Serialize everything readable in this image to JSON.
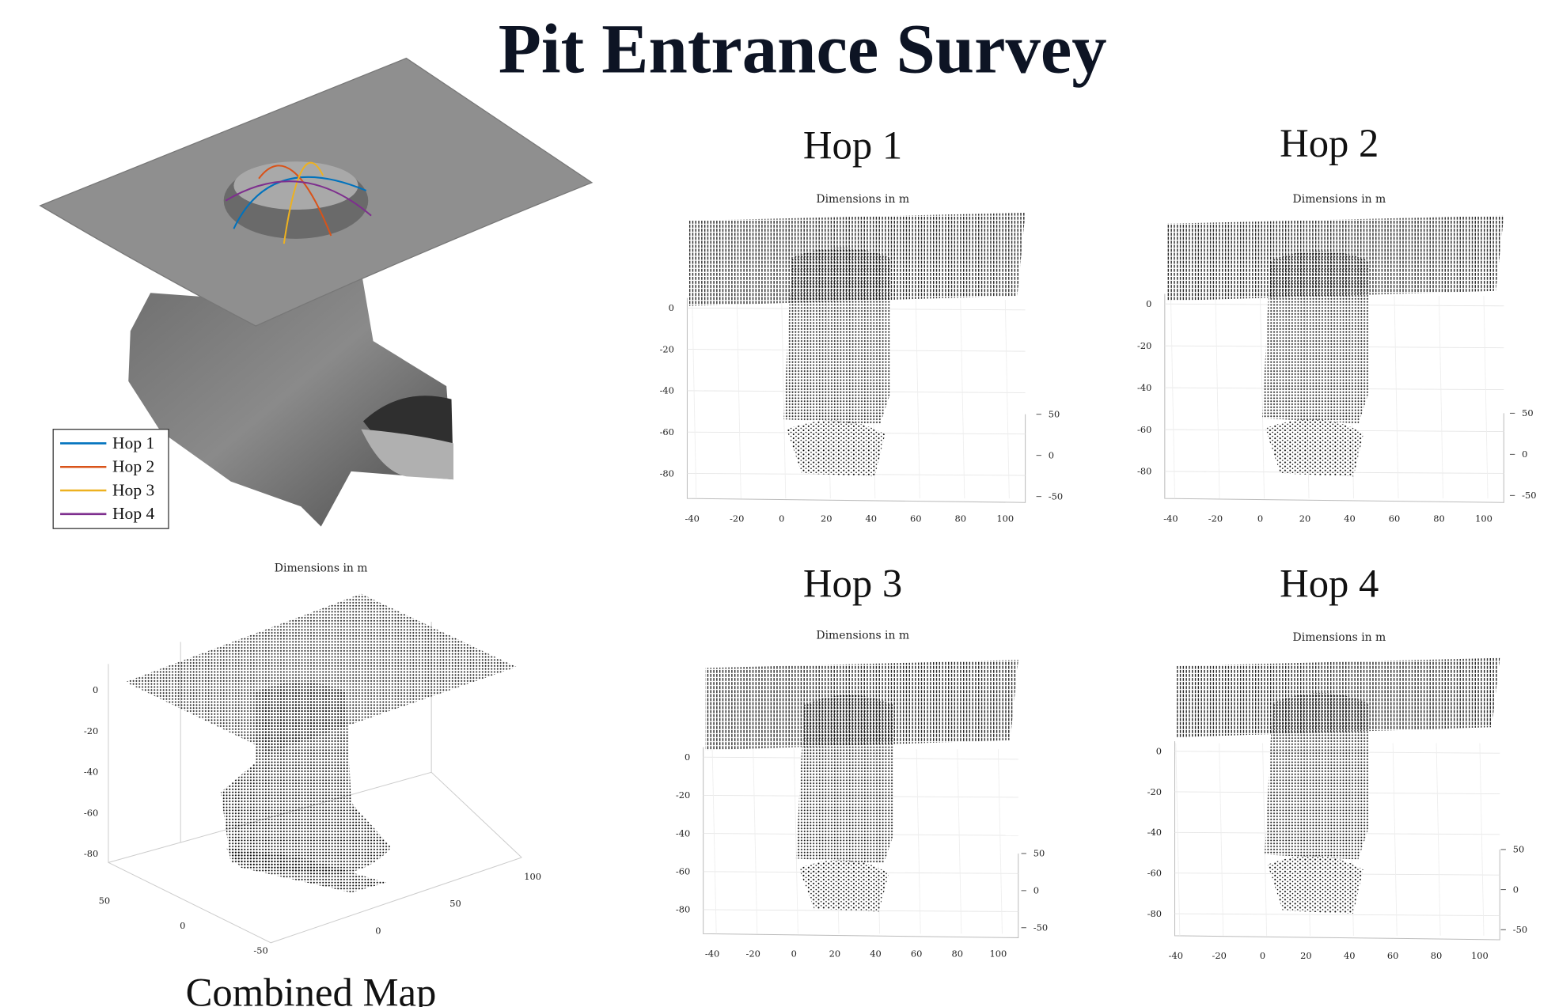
{
  "title": "Pit Entrance Survey",
  "model": {
    "legend": [
      {
        "label": "Hop 1",
        "color": "#0072bd"
      },
      {
        "label": "Hop 2",
        "color": "#d95319"
      },
      {
        "label": "Hop 3",
        "color": "#edb120"
      },
      {
        "label": "Hop 4",
        "color": "#7e2f8e"
      }
    ]
  },
  "combined": {
    "caption": "Combined Map",
    "subtitle": "Dimensions in m",
    "z_ticks": [
      0,
      -20,
      -40,
      -60,
      -80
    ],
    "y_ticks": [
      50,
      0,
      -50
    ],
    "x_ticks": [
      0,
      50,
      100
    ]
  },
  "hops": [
    {
      "title": "Hop 1",
      "subtitle": "Dimensions in m",
      "z_ticks": [
        0,
        -20,
        -40,
        -60,
        -80
      ],
      "x_ticks": [
        -40,
        -20,
        0,
        20,
        40,
        60,
        80,
        100
      ],
      "y_ticks": [
        50,
        0,
        -50
      ]
    },
    {
      "title": "Hop 2",
      "subtitle": "Dimensions in m",
      "z_ticks": [
        0,
        -20,
        -40,
        -60,
        -80
      ],
      "x_ticks": [
        -40,
        -20,
        0,
        20,
        40,
        60,
        80,
        100
      ],
      "y_ticks": [
        50,
        0,
        -50
      ]
    },
    {
      "title": "Hop 3",
      "subtitle": "Dimensions in m",
      "z_ticks": [
        0,
        -20,
        -40,
        -60,
        -80
      ],
      "x_ticks": [
        -40,
        -20,
        0,
        20,
        40,
        60,
        80,
        100
      ],
      "y_ticks": [
        50,
        0,
        -50
      ]
    },
    {
      "title": "Hop 4",
      "subtitle": "Dimensions in m",
      "z_ticks": [
        0,
        -20,
        -40,
        -60,
        -80
      ],
      "x_ticks": [
        -40,
        -20,
        0,
        20,
        40,
        60,
        80,
        100
      ],
      "y_ticks": [
        50,
        0,
        -50
      ]
    }
  ]
}
